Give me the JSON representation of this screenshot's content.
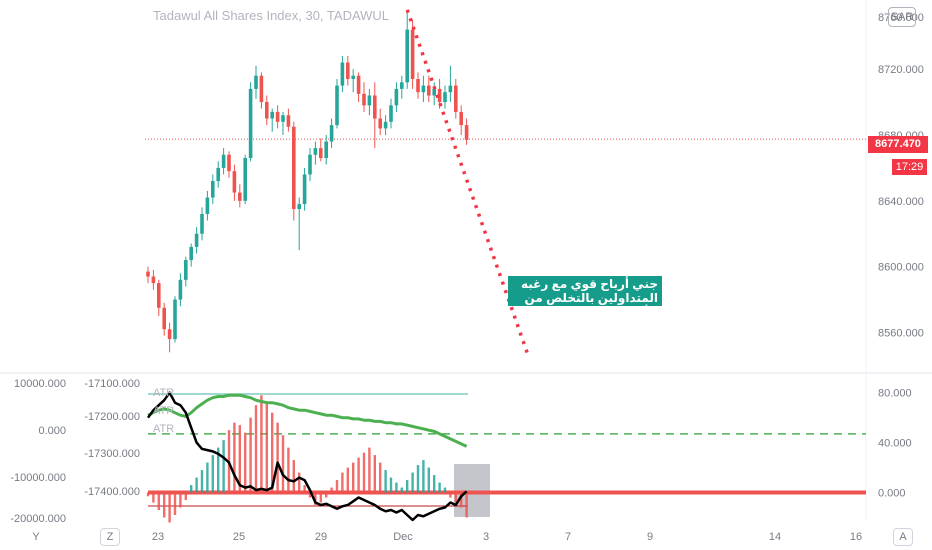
{
  "header": {
    "title": "Tadawul All Shares Index, 30, TADAWUL",
    "currency_button": "SAR"
  },
  "price_badge": "8677.470",
  "countdown_badge": "17:29",
  "annotation_text": "جني أرباح قوي مع رغبه المتداولين بالتخلص من الأسهم",
  "bottom_buttons": {
    "y": "Y",
    "z": "Z",
    "a": "A"
  },
  "colors": {
    "up": "#26a69a",
    "down": "#ef5350",
    "trend_dots": "#f23645",
    "annotation_bg": "#159c8a",
    "green_line": "#4caf50",
    "black_line": "#000000",
    "teal_line": "#80cbc4"
  },
  "chart_data": [
    {
      "type": "candlestick",
      "title": "Tadawul All Shares Index, 30, TADAWUL",
      "x_ticks": [
        "23",
        "25",
        "29",
        "Dec",
        "3",
        "7",
        "9",
        "14",
        "16"
      ],
      "y_ticks": [
        "8600.000",
        "8640.000",
        "8680.000",
        "8720.000",
        "8560.000"
      ],
      "y_tick_values": [
        8600,
        8640,
        8680,
        8720,
        8560
      ],
      "y_top_label": "8760.000",
      "ylim": [
        8536,
        8762
      ],
      "last_price": 8677.47,
      "ohlc": [
        [
          8597,
          8600,
          8590,
          8594
        ],
        [
          8594,
          8598,
          8586,
          8590
        ],
        [
          8590,
          8592,
          8570,
          8575
        ],
        [
          8575,
          8578,
          8558,
          8562
        ],
        [
          8562,
          8566,
          8548,
          8556
        ],
        [
          8556,
          8582,
          8554,
          8580
        ],
        [
          8580,
          8596,
          8576,
          8592
        ],
        [
          8592,
          8606,
          8588,
          8604
        ],
        [
          8604,
          8614,
          8600,
          8612
        ],
        [
          8612,
          8624,
          8608,
          8620
        ],
        [
          8620,
          8636,
          8616,
          8632
        ],
        [
          8632,
          8646,
          8628,
          8642
        ],
        [
          8642,
          8656,
          8638,
          8652
        ],
        [
          8652,
          8664,
          8648,
          8660
        ],
        [
          8660,
          8672,
          8656,
          8668
        ],
        [
          8668,
          8670,
          8654,
          8658
        ],
        [
          8658,
          8662,
          8640,
          8645
        ],
        [
          8645,
          8650,
          8636,
          8640
        ],
        [
          8640,
          8668,
          8638,
          8666
        ],
        [
          8666,
          8712,
          8664,
          8708
        ],
        [
          8708,
          8722,
          8702,
          8716
        ],
        [
          8716,
          8718,
          8696,
          8700
        ],
        [
          8700,
          8704,
          8686,
          8690
        ],
        [
          8690,
          8696,
          8682,
          8694
        ],
        [
          8694,
          8698,
          8684,
          8688
        ],
        [
          8688,
          8694,
          8680,
          8692
        ],
        [
          8692,
          8696,
          8682,
          8685
        ],
        [
          8685,
          8688,
          8628,
          8635
        ],
        [
          8635,
          8642,
          8610,
          8638
        ],
        [
          8638,
          8660,
          8634,
          8656
        ],
        [
          8656,
          8672,
          8652,
          8668
        ],
        [
          8668,
          8676,
          8662,
          8672
        ],
        [
          8672,
          8678,
          8664,
          8666
        ],
        [
          8666,
          8680,
          8662,
          8676
        ],
        [
          8676,
          8690,
          8672,
          8686
        ],
        [
          8686,
          8714,
          8684,
          8710
        ],
        [
          8710,
          8728,
          8706,
          8724
        ],
        [
          8724,
          8728,
          8710,
          8714
        ],
        [
          8714,
          8720,
          8706,
          8716
        ],
        [
          8716,
          8718,
          8700,
          8705
        ],
        [
          8705,
          8712,
          8694,
          8698
        ],
        [
          8698,
          8708,
          8692,
          8704
        ],
        [
          8704,
          8712,
          8672,
          8690
        ],
        [
          8690,
          8696,
          8680,
          8684
        ],
        [
          8684,
          8692,
          8680,
          8688
        ],
        [
          8688,
          8702,
          8684,
          8698
        ],
        [
          8698,
          8712,
          8694,
          8708
        ],
        [
          8708,
          8716,
          8702,
          8712
        ],
        [
          8712,
          8756,
          8708,
          8744
        ],
        [
          8744,
          8750,
          8708,
          8714
        ],
        [
          8714,
          8718,
          8702,
          8706
        ],
        [
          8706,
          8716,
          8700,
          8710
        ],
        [
          8710,
          8716,
          8700,
          8704
        ],
        [
          8704,
          8712,
          8698,
          8708
        ],
        [
          8708,
          8714,
          8696,
          8700
        ],
        [
          8700,
          8710,
          8696,
          8706
        ],
        [
          8706,
          8722,
          8700,
          8710
        ],
        [
          8710,
          8714,
          8690,
          8694
        ],
        [
          8694,
          8698,
          8680,
          8686
        ],
        [
          8686,
          8690,
          8674,
          8677
        ]
      ]
    },
    {
      "type": "line",
      "title": "",
      "left_axis_outer_ticks": [
        "10000.000",
        "0.000",
        "-10000.000",
        "-20000.000"
      ],
      "left_axis_inner_ticks": [
        "-17100.000",
        "-17200.000",
        "-17300.000",
        "-17400.000"
      ],
      "right_axis_ticks": [
        "80.000",
        "40.000",
        "0.000"
      ],
      "right_tick_values": [
        80,
        40,
        0
      ],
      "indicator_labels": [
        "ATR",
        "ATR",
        "ATR"
      ],
      "ylim": [
        -22,
        95
      ],
      "reference_lines": [
        {
          "name": "",
          "value": 79
        },
        {
          "name": "",
          "value": 47
        },
        {
          "name": "",
          "value": 0
        }
      ],
      "histogram": [
        -3,
        -8,
        -14,
        -20,
        -24,
        -18,
        -12,
        -6,
        6,
        12,
        18,
        24,
        30,
        36,
        42,
        50,
        56,
        54,
        48,
        60,
        70,
        78,
        72,
        64,
        56,
        46,
        36,
        26,
        16,
        6,
        -4,
        -10,
        -8,
        -4,
        4,
        10,
        16,
        20,
        24,
        28,
        32,
        36,
        30,
        24,
        18,
        12,
        8,
        4,
        10,
        16,
        22,
        26,
        20,
        14,
        8,
        4,
        -4,
        -8,
        -12,
        -20
      ],
      "series": [
        {
          "name": "",
          "values": [
            62,
            64,
            66,
            67,
            66,
            64,
            62,
            61,
            64,
            68,
            71,
            74,
            76,
            77,
            77,
            78,
            78,
            78,
            77,
            76,
            74,
            73,
            72,
            72,
            71,
            70,
            68,
            67,
            66,
            66,
            65,
            64,
            63,
            62,
            62,
            61,
            60,
            60,
            59,
            59,
            58,
            58,
            57,
            57,
            56,
            56,
            55,
            55,
            54,
            53,
            52,
            51,
            50,
            49,
            47,
            45,
            43,
            41,
            39,
            37
          ]
        },
        {
          "name": "",
          "values": [
            60,
            66,
            70,
            74,
            80,
            72,
            70,
            64,
            52,
            40,
            35,
            34,
            33,
            31,
            28,
            24,
            14,
            6,
            4,
            5,
            2,
            3,
            2,
            4,
            24,
            14,
            10,
            9,
            12,
            10,
            2,
            -8,
            -10,
            -9,
            -11,
            -13,
            -11,
            -10,
            -7,
            -4,
            -6,
            -8,
            -10,
            -13,
            -15,
            -14,
            -16,
            -14,
            -18,
            -22,
            -18,
            -19,
            -17,
            -15,
            -13,
            -12,
            -8,
            -10,
            -3,
            1
          ]
        }
      ]
    }
  ]
}
